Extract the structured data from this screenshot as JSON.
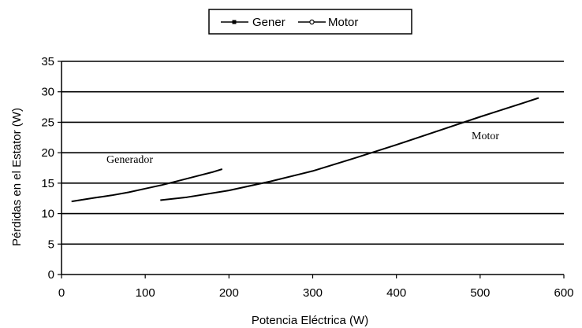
{
  "chart_data": {
    "type": "line",
    "xlabel": "Potencia Eléctrica (W)",
    "ylabel": "Pérdidas en el Estator (W)",
    "xlim": [
      0,
      600
    ],
    "ylim": [
      0,
      35
    ],
    "x_ticks": [
      0,
      100,
      200,
      300,
      400,
      500,
      600
    ],
    "y_ticks": [
      0,
      5,
      10,
      15,
      20,
      25,
      30,
      35
    ],
    "grid": "horizontal",
    "legend_position": "top-center",
    "series": [
      {
        "name": "Gener",
        "annotation": "Generador",
        "color": "#000000",
        "marker": "filled-square",
        "x": [
          12,
          40,
          60,
          80,
          100,
          120,
          140,
          160,
          180,
          192
        ],
        "y": [
          12.0,
          12.6,
          13.0,
          13.5,
          14.1,
          14.7,
          15.4,
          16.1,
          16.8,
          17.3
        ]
      },
      {
        "name": "Motor",
        "annotation": "Motor",
        "color": "#000000",
        "marker": "open-circle",
        "x": [
          118,
          150,
          200,
          250,
          300,
          350,
          400,
          450,
          500,
          550,
          570
        ],
        "y": [
          12.2,
          12.7,
          13.8,
          15.3,
          17.0,
          19.1,
          21.3,
          23.6,
          25.9,
          28.1,
          29.0
        ]
      }
    ]
  }
}
